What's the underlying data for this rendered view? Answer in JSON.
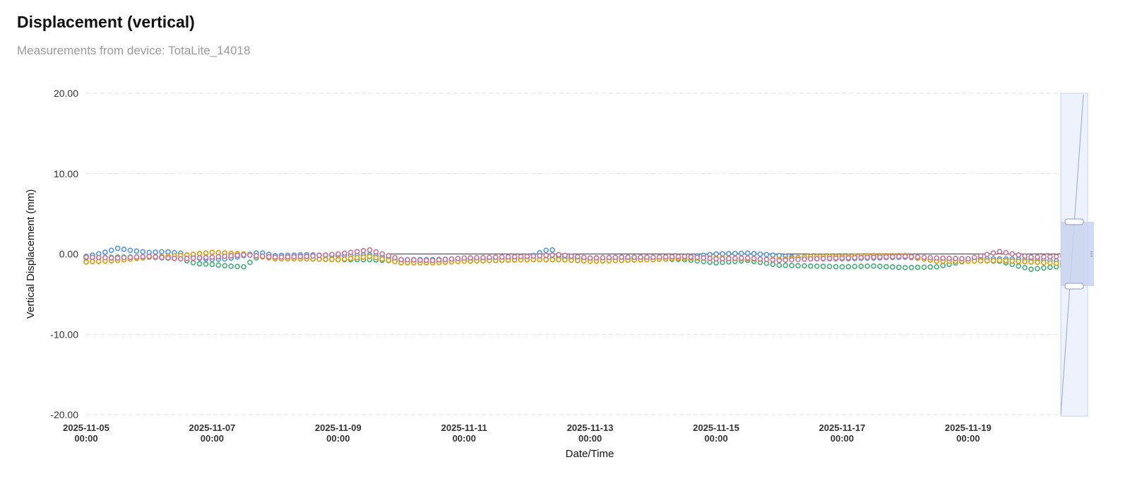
{
  "header": {
    "title": "Displacement (vertical)",
    "subtitle": "Measurements from device: TotaLite_14018"
  },
  "chart_data": {
    "type": "scatter",
    "title": "Displacement (vertical)",
    "subtitle": "Measurements from device: TotaLite_14018",
    "xlabel": "Date/Time",
    "ylabel": "Vertical Displacement (mm)",
    "ylim": [
      -20,
      20
    ],
    "xlim": [
      "2025-11-05 00:00",
      "2025-11-20 14:00"
    ],
    "y_ticks": [
      "20.00",
      "10.00",
      "0.00",
      "-10.00",
      "-20.00"
    ],
    "x_ticks": [
      {
        "date": "2025-11-05",
        "time": "00:00"
      },
      {
        "date": "2025-11-07",
        "time": "00:00"
      },
      {
        "date": "2025-11-09",
        "time": "00:00"
      },
      {
        "date": "2025-11-11",
        "time": "00:00"
      },
      {
        "date": "2025-11-13",
        "time": "00:00"
      },
      {
        "date": "2025-11-15",
        "time": "00:00"
      },
      {
        "date": "2025-11-17",
        "time": "00:00"
      },
      {
        "date": "2025-11-19",
        "time": "00:00"
      }
    ],
    "grid": true,
    "legend": "none",
    "colors": [
      "#5b9bd5",
      "#4caf7d",
      "#d4a017",
      "#c47a9b"
    ],
    "series": [
      {
        "color": "#5b9bd5",
        "x": [
          "2025-11-05 00:00",
          "2025-11-05 06:00",
          "2025-11-05 12:00",
          "2025-11-05 18:00",
          "2025-11-06 00:00",
          "2025-11-06 06:00",
          "2025-11-06 12:00",
          "2025-11-06 18:00",
          "2025-11-07 00:00",
          "2025-11-07 06:00",
          "2025-11-07 12:00",
          "2025-11-07 18:00",
          "2025-11-08 00:00",
          "2025-11-08 12:00",
          "2025-11-09 00:00",
          "2025-11-09 12:00",
          "2025-11-10 00:00",
          "2025-11-10 12:00",
          "2025-11-11 00:00",
          "2025-11-11 12:00",
          "2025-11-12 00:00",
          "2025-11-12 09:00",
          "2025-11-12 12:00",
          "2025-11-13 00:00",
          "2025-11-13 12:00",
          "2025-11-14 00:00",
          "2025-11-14 12:00",
          "2025-11-15 00:00",
          "2025-11-15 12:00",
          "2025-11-16 00:00",
          "2025-11-16 12:00",
          "2025-11-17 00:00",
          "2025-11-17 12:00",
          "2025-11-18 00:00",
          "2025-11-18 12:00",
          "2025-11-19 00:00",
          "2025-11-19 12:00",
          "2025-11-20 00:00",
          "2025-11-20 12:00"
        ],
        "y": [
          -0.3,
          0.1,
          0.7,
          0.4,
          0.2,
          0.3,
          0.1,
          -0.5,
          -0.7,
          -0.6,
          -0.2,
          0.2,
          -0.2,
          -0.1,
          -0.2,
          -0.1,
          -0.7,
          -0.7,
          -0.6,
          -0.6,
          -0.5,
          0.7,
          -0.3,
          -0.5,
          -0.4,
          -0.5,
          -0.4,
          0.0,
          0.1,
          -0.2,
          -0.6,
          -0.6,
          -0.5,
          -0.4,
          -0.7,
          -0.6,
          -0.6,
          -0.7,
          -0.9
        ]
      },
      {
        "color": "#4caf7d",
        "x": [
          "2025-11-05 00:00",
          "2025-11-05 12:00",
          "2025-11-06 00:00",
          "2025-11-06 12:00",
          "2025-11-06 18:00",
          "2025-11-07 00:00",
          "2025-11-07 06:00",
          "2025-11-07 12:00",
          "2025-11-07 18:00",
          "2025-11-08 00:00",
          "2025-11-08 12:00",
          "2025-11-09 00:00",
          "2025-11-09 12:00",
          "2025-11-10 00:00",
          "2025-11-10 12:00",
          "2025-11-11 00:00",
          "2025-11-11 12:00",
          "2025-11-12 00:00",
          "2025-11-12 12:00",
          "2025-11-13 00:00",
          "2025-11-13 12:00",
          "2025-11-14 00:00",
          "2025-11-14 12:00",
          "2025-11-15 00:00",
          "2025-11-15 12:00",
          "2025-11-16 00:00",
          "2025-11-16 12:00",
          "2025-11-17 00:00",
          "2025-11-17 12:00",
          "2025-11-18 00:00",
          "2025-11-18 12:00",
          "2025-11-19 00:00",
          "2025-11-19 12:00",
          "2025-11-20 00:00",
          "2025-11-20 12:00"
        ],
        "y": [
          -0.5,
          -0.4,
          -0.4,
          -0.6,
          -1.2,
          -1.3,
          -1.5,
          -1.6,
          -0.2,
          -0.5,
          -0.6,
          -0.7,
          -0.7,
          -0.9,
          -0.9,
          -0.8,
          -0.8,
          -0.7,
          -0.6,
          -0.6,
          -0.6,
          -0.6,
          -0.7,
          -1.1,
          -0.8,
          -1.4,
          -1.5,
          -1.6,
          -1.5,
          -1.7,
          -1.6,
          -0.8,
          -0.9,
          -1.9,
          -1.5
        ]
      },
      {
        "color": "#d4a017",
        "x": [
          "2025-11-05 00:00",
          "2025-11-05 12:00",
          "2025-11-06 00:00",
          "2025-11-06 12:00",
          "2025-11-07 00:00",
          "2025-11-07 12:00",
          "2025-11-08 00:00",
          "2025-11-08 12:00",
          "2025-11-09 00:00",
          "2025-11-09 12:00",
          "2025-11-10 00:00",
          "2025-11-10 12:00",
          "2025-11-11 00:00",
          "2025-11-11 12:00",
          "2025-11-12 00:00",
          "2025-11-12 12:00",
          "2025-11-13 00:00",
          "2025-11-13 12:00",
          "2025-11-14 00:00",
          "2025-11-14 12:00",
          "2025-11-15 00:00",
          "2025-11-15 12:00",
          "2025-11-16 00:00",
          "2025-11-16 12:00",
          "2025-11-17 00:00",
          "2025-11-17 12:00",
          "2025-11-18 00:00",
          "2025-11-18 12:00",
          "2025-11-19 00:00",
          "2025-11-19 12:00",
          "2025-11-20 00:00",
          "2025-11-20 12:00"
        ],
        "y": [
          -1.0,
          -0.8,
          -0.4,
          -0.2,
          0.2,
          0.0,
          -0.6,
          -0.6,
          -0.7,
          -0.3,
          -1.1,
          -1.1,
          -0.9,
          -0.8,
          -0.7,
          -0.7,
          -0.9,
          -0.8,
          -0.7,
          -0.5,
          -0.5,
          -0.6,
          -0.7,
          -0.3,
          -0.3,
          -0.2,
          -0.2,
          -0.9,
          -0.9,
          -0.8,
          -1.0,
          -1.2
        ]
      },
      {
        "color": "#c47a9b",
        "x": [
          "2025-11-05 00:00",
          "2025-11-05 12:00",
          "2025-11-06 00:00",
          "2025-11-06 12:00",
          "2025-11-07 00:00",
          "2025-11-07 12:00",
          "2025-11-08 00:00",
          "2025-11-08 12:00",
          "2025-11-09 00:00",
          "2025-11-09 12:00",
          "2025-11-10 00:00",
          "2025-11-10 12:00",
          "2025-11-11 00:00",
          "2025-11-11 12:00",
          "2025-11-12 00:00",
          "2025-11-12 12:00",
          "2025-11-13 00:00",
          "2025-11-13 12:00",
          "2025-11-14 00:00",
          "2025-11-14 12:00",
          "2025-11-15 00:00",
          "2025-11-15 12:00",
          "2025-11-16 00:00",
          "2025-11-16 12:00",
          "2025-11-17 00:00",
          "2025-11-17 12:00",
          "2025-11-18 00:00",
          "2025-11-18 12:00",
          "2025-11-19 00:00",
          "2025-11-19 12:00",
          "2025-11-20 00:00",
          "2025-11-20 12:00"
        ],
        "y": [
          -0.4,
          -0.5,
          -0.3,
          -0.6,
          -0.4,
          -0.1,
          -0.4,
          -0.3,
          0.0,
          0.5,
          -0.7,
          -0.8,
          -0.5,
          -0.4,
          -0.3,
          -0.1,
          -0.5,
          -0.4,
          -0.4,
          -0.3,
          -0.6,
          -0.5,
          -0.8,
          -0.6,
          -0.5,
          -0.4,
          -0.3,
          -0.5,
          -0.6,
          0.3,
          -0.4,
          -0.3
        ]
      }
    ],
    "zoom_control": {
      "range_low": -4,
      "range_high": 4
    }
  }
}
